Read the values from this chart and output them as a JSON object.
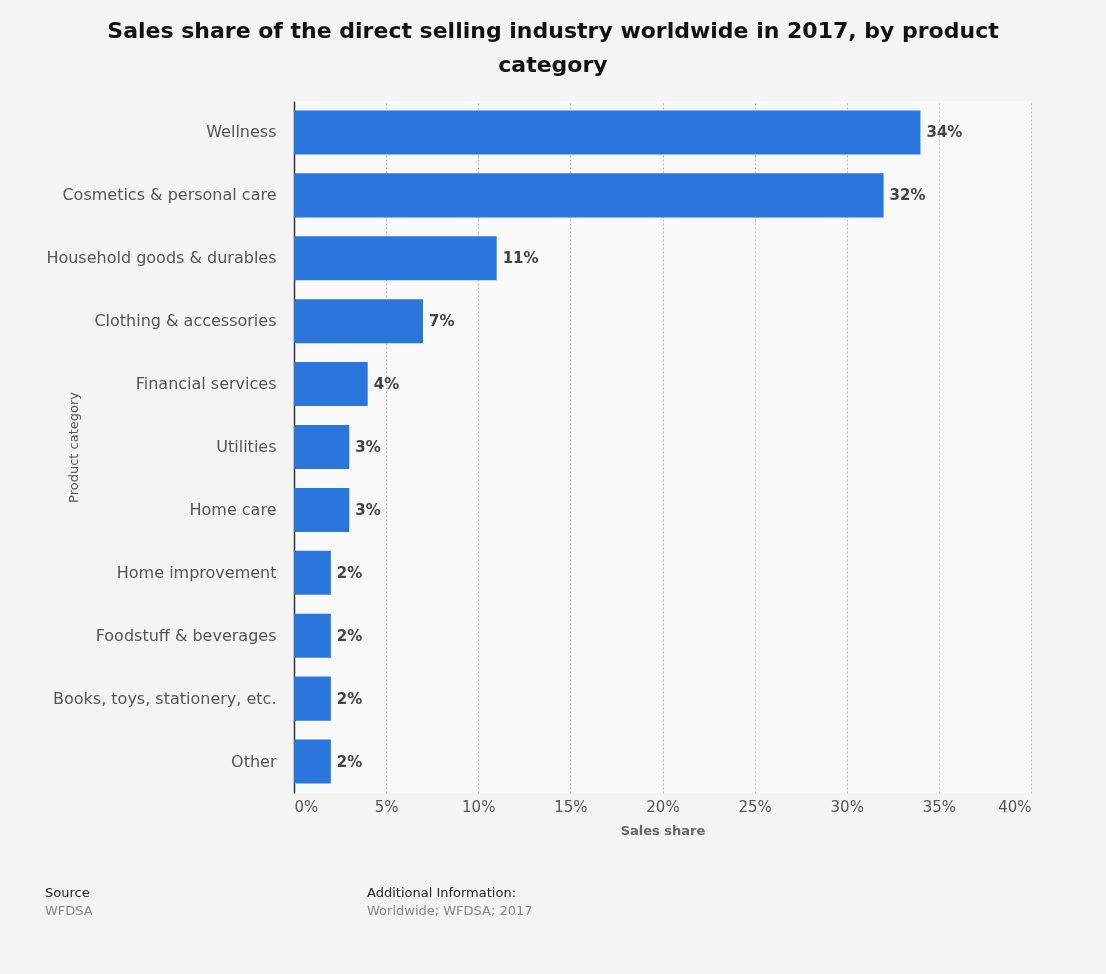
{
  "chart_data": {
    "type": "bar",
    "orientation": "horizontal",
    "title": "Sales share of the direct selling industry worldwide in 2017, by product category",
    "xlabel": "Sales share",
    "ylabel": "Product category",
    "categories": [
      "Wellness",
      "Cosmetics & personal care",
      "Household goods & durables",
      "Clothing & accessories",
      "Financial services",
      "Utilities",
      "Home care",
      "Home improvement",
      "Foodstuff & beverages",
      "Books, toys, stationery, etc.",
      "Other"
    ],
    "values": [
      34,
      32,
      11,
      7,
      4,
      3,
      3,
      2,
      2,
      2,
      2
    ],
    "value_labels": [
      "34%",
      "32%",
      "11%",
      "7%",
      "4%",
      "3%",
      "3%",
      "2%",
      "2%",
      "2%",
      "2%"
    ],
    "color": "#2a76dd",
    "xlim": [
      0,
      40
    ],
    "xticks": [
      {
        "value": 0,
        "label": "0%"
      },
      {
        "value": 5,
        "label": "5%"
      },
      {
        "value": 10,
        "label": "10%"
      },
      {
        "value": 15,
        "label": "15%"
      },
      {
        "value": 20,
        "label": "20%"
      },
      {
        "value": 25,
        "label": "25%"
      },
      {
        "value": 30,
        "label": "30%"
      },
      {
        "value": 35,
        "label": "35%"
      },
      {
        "value": 40,
        "label": "40%"
      }
    ],
    "grid": "x",
    "annotations": [
      "Source",
      "WFDSA",
      "Additional Information:",
      "Worldwide; WFDSA; 2017"
    ]
  }
}
